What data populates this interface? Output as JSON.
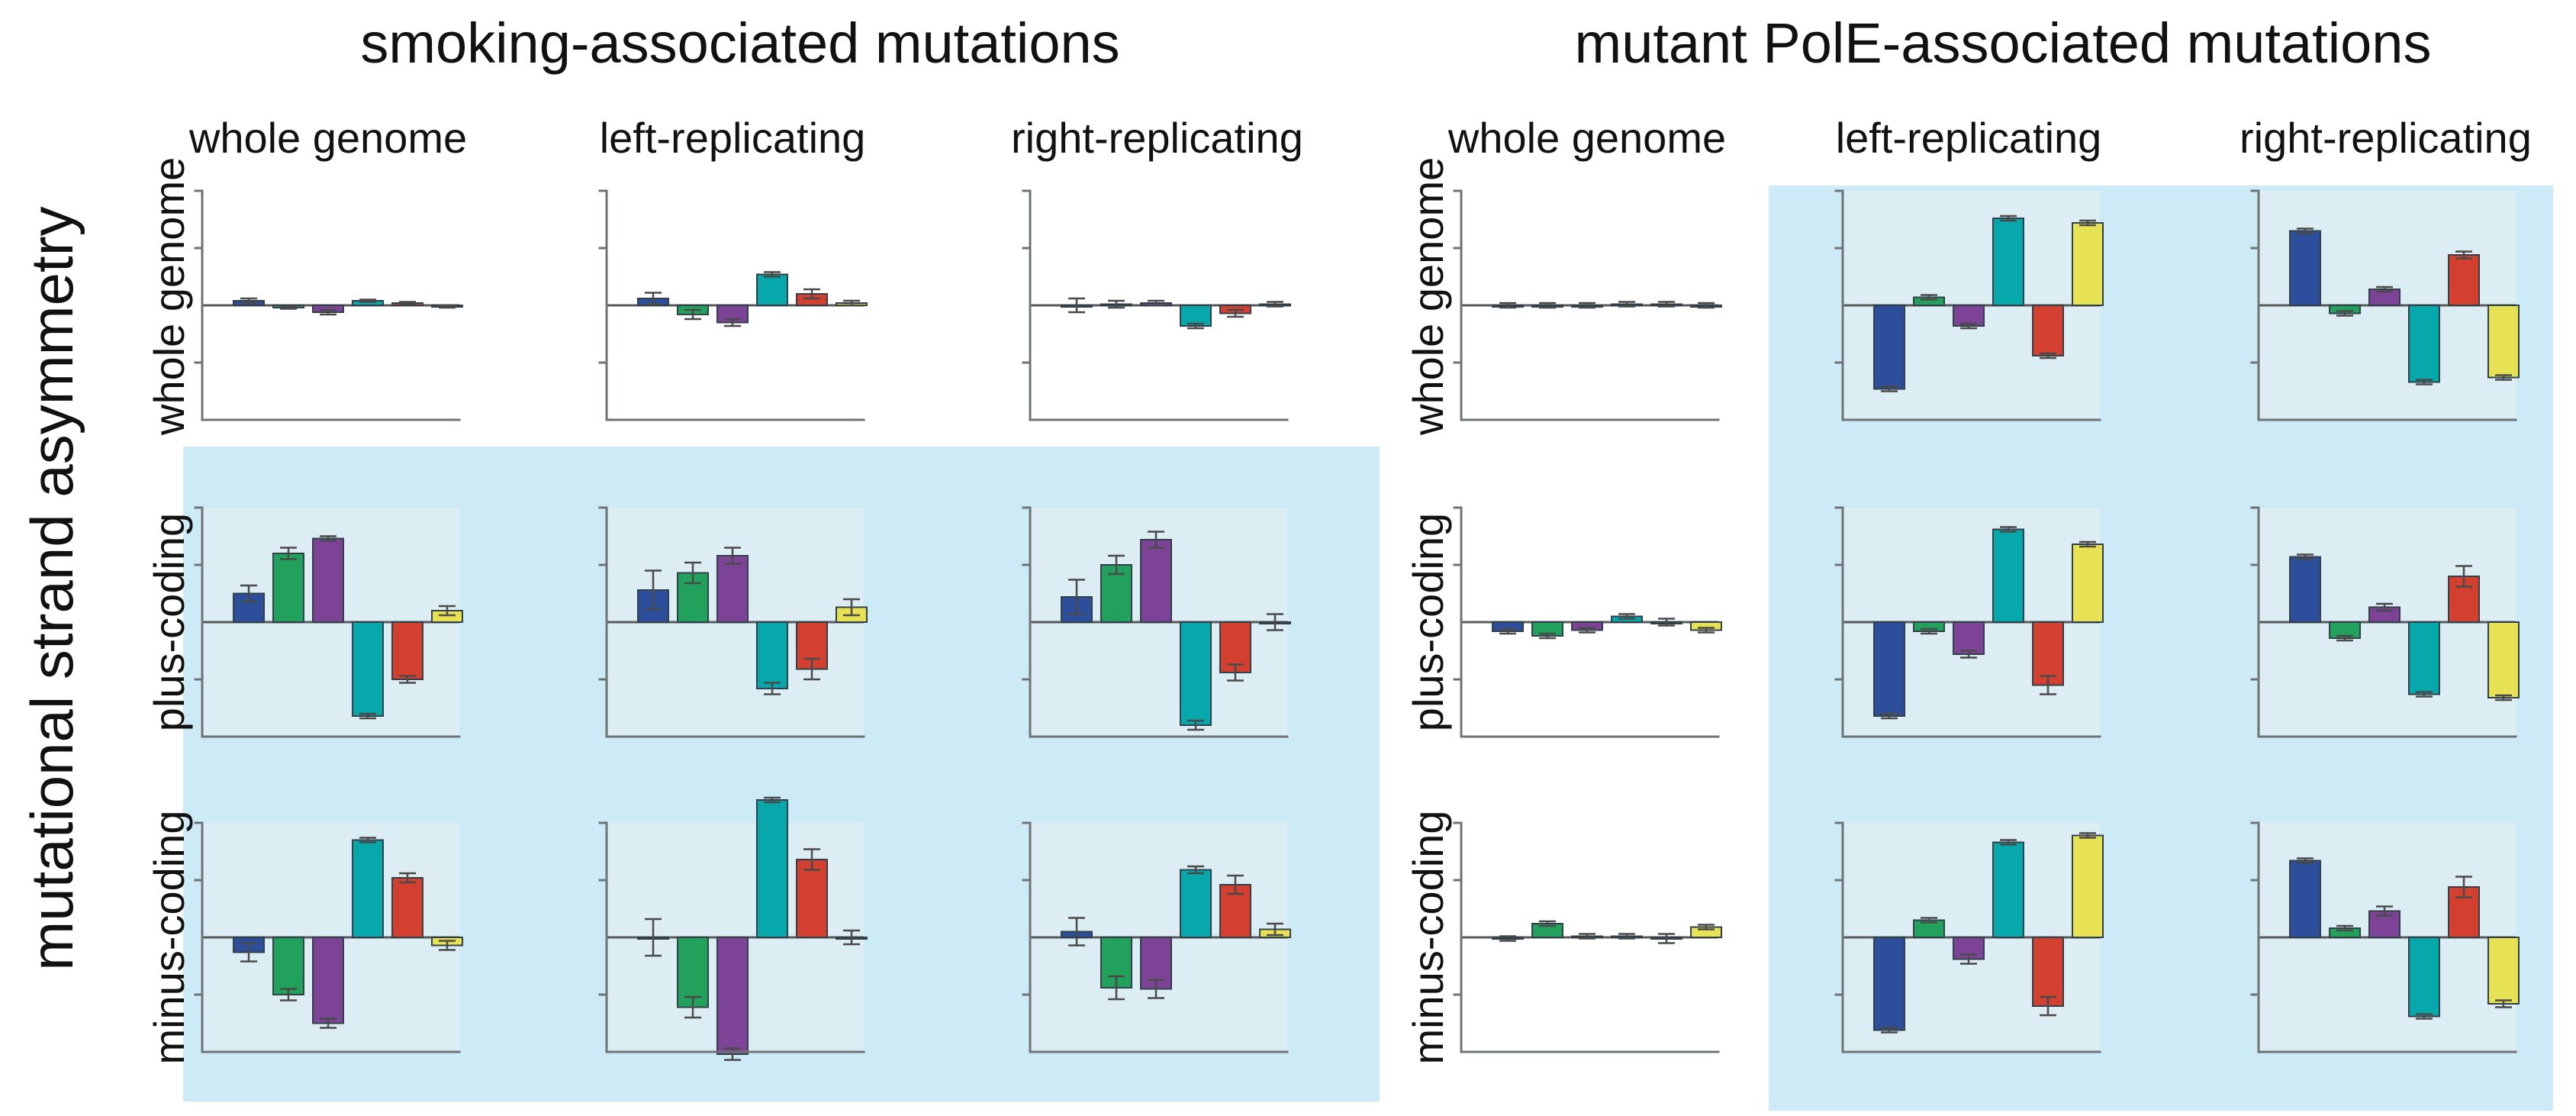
{
  "figure": {
    "y_axis_label": "mutational strand asymmetry",
    "panels": [
      {
        "title": "smoking-associated mutations",
        "columns": [
          "whole genome",
          "left-replicating",
          "right-replicating"
        ],
        "rows": [
          "whole genome",
          "plus-coding",
          "minus-coding"
        ],
        "highlight": {
          "mode": "rows",
          "from_index": 1
        }
      },
      {
        "title": "mutant PolE-associated mutations",
        "columns": [
          "whole genome",
          "left-replicating",
          "right-replicating"
        ],
        "rows": [
          "whole genome",
          "plus-coding",
          "minus-coding"
        ],
        "highlight": {
          "mode": "columns",
          "from_index": 1
        }
      }
    ]
  },
  "bar_series": [
    "blue",
    "green",
    "purple",
    "teal",
    "red",
    "yellow"
  ],
  "colors": {
    "blue": "#2d4f9b",
    "green": "#21a15c",
    "purple": "#7c4397",
    "teal": "#07a8ac",
    "red": "#d4402f",
    "yellow": "#e6e254",
    "highlight_bg": "#cdebf7",
    "plot_bg_highlight": "#dcedf3",
    "axis": "#6e7475",
    "zero_line": "#5a5a5a",
    "error_bar": "#4a4a4a",
    "bar_outline": "#32404a",
    "text": "#111111"
  },
  "chart_data": [
    {
      "type": "bar",
      "panel": "smoking-associated mutations",
      "row": "whole genome",
      "column": "whole genome",
      "categories": [
        "blue",
        "green",
        "purple",
        "teal",
        "red",
        "yellow"
      ],
      "values": [
        0.04,
        -0.02,
        -0.06,
        0.04,
        0.02,
        -0.01
      ],
      "errors": [
        0.02,
        0.01,
        0.02,
        0.01,
        0.01,
        0.01
      ],
      "ylim": [
        -1,
        1
      ],
      "grid": false,
      "legend": "none"
    },
    {
      "type": "bar",
      "panel": "smoking-associated mutations",
      "row": "whole genome",
      "column": "left-replicating",
      "categories": [
        "blue",
        "green",
        "purple",
        "teal",
        "red",
        "yellow"
      ],
      "values": [
        0.06,
        -0.08,
        -0.15,
        0.27,
        0.1,
        0.02
      ],
      "errors": [
        0.05,
        0.04,
        0.03,
        0.02,
        0.04,
        0.02
      ],
      "ylim": [
        -1,
        1
      ],
      "grid": false,
      "legend": "none"
    },
    {
      "type": "bar",
      "panel": "smoking-associated mutations",
      "row": "whole genome",
      "column": "right-replicating",
      "categories": [
        "blue",
        "green",
        "purple",
        "teal",
        "red",
        "yellow"
      ],
      "values": [
        0.0,
        0.01,
        0.02,
        -0.18,
        -0.07,
        0.01
      ],
      "errors": [
        0.06,
        0.03,
        0.02,
        0.02,
        0.03,
        0.02
      ],
      "ylim": [
        -1,
        1
      ],
      "grid": false,
      "legend": "none"
    },
    {
      "type": "bar",
      "panel": "smoking-associated mutations",
      "row": "plus-coding",
      "column": "whole genome",
      "categories": [
        "blue",
        "green",
        "purple",
        "teal",
        "red",
        "yellow"
      ],
      "values": [
        0.25,
        0.6,
        0.73,
        -0.82,
        -0.5,
        0.1
      ],
      "errors": [
        0.07,
        0.05,
        0.02,
        0.02,
        0.03,
        0.04
      ],
      "ylim": [
        -1,
        1
      ],
      "grid": false,
      "legend": "none"
    },
    {
      "type": "bar",
      "panel": "smoking-associated mutations",
      "row": "plus-coding",
      "column": "left-replicating",
      "categories": [
        "blue",
        "green",
        "purple",
        "teal",
        "red",
        "yellow"
      ],
      "values": [
        0.28,
        0.43,
        0.58,
        -0.58,
        -0.41,
        0.13
      ],
      "errors": [
        0.17,
        0.09,
        0.07,
        0.05,
        0.09,
        0.07
      ],
      "ylim": [
        -1,
        1
      ],
      "grid": false,
      "legend": "none"
    },
    {
      "type": "bar",
      "panel": "smoking-associated mutations",
      "row": "plus-coding",
      "column": "right-replicating",
      "categories": [
        "blue",
        "green",
        "purple",
        "teal",
        "red",
        "yellow"
      ],
      "values": [
        0.22,
        0.5,
        0.72,
        -0.9,
        -0.44,
        0.0
      ],
      "errors": [
        0.15,
        0.08,
        0.07,
        0.04,
        0.07,
        0.07
      ],
      "ylim": [
        -1,
        1
      ],
      "grid": false,
      "legend": "none"
    },
    {
      "type": "bar",
      "panel": "smoking-associated mutations",
      "row": "minus-coding",
      "column": "whole genome",
      "categories": [
        "blue",
        "green",
        "purple",
        "teal",
        "red",
        "yellow"
      ],
      "values": [
        -0.13,
        -0.5,
        -0.75,
        0.85,
        0.52,
        -0.07
      ],
      "errors": [
        0.08,
        0.05,
        0.04,
        0.02,
        0.04,
        0.04
      ],
      "ylim": [
        -1,
        1
      ],
      "grid": false,
      "legend": "none"
    },
    {
      "type": "bar",
      "panel": "smoking-associated mutations",
      "row": "minus-coding",
      "column": "left-replicating",
      "categories": [
        "blue",
        "green",
        "purple",
        "teal",
        "red",
        "yellow"
      ],
      "values": [
        0.0,
        -0.61,
        -1.02,
        1.2,
        0.68,
        0.0
      ],
      "errors": [
        0.16,
        0.09,
        0.05,
        0.02,
        0.09,
        0.06
      ],
      "ylim": [
        -1,
        1
      ],
      "grid": false,
      "legend": "none"
    },
    {
      "type": "bar",
      "panel": "smoking-associated mutations",
      "row": "minus-coding",
      "column": "right-replicating",
      "categories": [
        "blue",
        "green",
        "purple",
        "teal",
        "red",
        "yellow"
      ],
      "values": [
        0.05,
        -0.44,
        -0.45,
        0.59,
        0.46,
        0.07
      ],
      "errors": [
        0.12,
        0.1,
        0.08,
        0.03,
        0.08,
        0.05
      ],
      "ylim": [
        -1,
        1
      ],
      "grid": false,
      "legend": "none"
    },
    {
      "type": "bar",
      "panel": "mutant PolE-associated mutations",
      "row": "whole genome",
      "column": "whole genome",
      "categories": [
        "blue",
        "green",
        "purple",
        "teal",
        "red",
        "yellow"
      ],
      "values": [
        0.0,
        0.0,
        0.0,
        0.01,
        0.01,
        0.0
      ],
      "errors": [
        0.02,
        0.02,
        0.02,
        0.02,
        0.02,
        0.02
      ],
      "ylim": [
        -1,
        1
      ],
      "grid": false,
      "legend": "none"
    },
    {
      "type": "bar",
      "panel": "mutant PolE-associated mutations",
      "row": "whole genome",
      "column": "left-replicating",
      "categories": [
        "blue",
        "green",
        "purple",
        "teal",
        "red",
        "yellow"
      ],
      "values": [
        -0.73,
        0.07,
        -0.18,
        0.76,
        -0.44,
        0.72
      ],
      "errors": [
        0.02,
        0.02,
        0.02,
        0.02,
        0.02,
        0.02
      ],
      "ylim": [
        -1,
        1
      ],
      "grid": false,
      "legend": "none"
    },
    {
      "type": "bar",
      "panel": "mutant PolE-associated mutations",
      "row": "whole genome",
      "column": "right-replicating",
      "categories": [
        "blue",
        "green",
        "purple",
        "teal",
        "red",
        "yellow"
      ],
      "values": [
        0.65,
        -0.07,
        0.14,
        -0.67,
        0.44,
        -0.63
      ],
      "errors": [
        0.02,
        0.02,
        0.02,
        0.02,
        0.03,
        0.02
      ],
      "ylim": [
        -1,
        1
      ],
      "grid": false,
      "legend": "none"
    },
    {
      "type": "bar",
      "panel": "mutant PolE-associated mutations",
      "row": "plus-coding",
      "column": "whole genome",
      "categories": [
        "blue",
        "green",
        "purple",
        "teal",
        "red",
        "yellow"
      ],
      "values": [
        -0.08,
        -0.12,
        -0.07,
        0.05,
        0.0,
        -0.07
      ],
      "errors": [
        0.02,
        0.02,
        0.02,
        0.02,
        0.03,
        0.02
      ],
      "ylim": [
        -1,
        1
      ],
      "grid": false,
      "legend": "none"
    },
    {
      "type": "bar",
      "panel": "mutant PolE-associated mutations",
      "row": "plus-coding",
      "column": "left-replicating",
      "categories": [
        "blue",
        "green",
        "purple",
        "teal",
        "red",
        "yellow"
      ],
      "values": [
        -0.82,
        -0.08,
        -0.28,
        0.81,
        -0.55,
        0.68
      ],
      "errors": [
        0.02,
        0.02,
        0.03,
        0.02,
        0.08,
        0.02
      ],
      "ylim": [
        -1,
        1
      ],
      "grid": false,
      "legend": "none"
    },
    {
      "type": "bar",
      "panel": "mutant PolE-associated mutations",
      "row": "plus-coding",
      "column": "right-replicating",
      "categories": [
        "blue",
        "green",
        "purple",
        "teal",
        "red",
        "yellow"
      ],
      "values": [
        0.57,
        -0.14,
        0.13,
        -0.63,
        0.4,
        -0.66
      ],
      "errors": [
        0.02,
        0.02,
        0.03,
        0.02,
        0.09,
        0.02
      ],
      "ylim": [
        -1,
        1
      ],
      "grid": false,
      "legend": "none"
    },
    {
      "type": "bar",
      "panel": "mutant PolE-associated mutations",
      "row": "minus-coding",
      "column": "whole genome",
      "categories": [
        "blue",
        "green",
        "purple",
        "teal",
        "red",
        "yellow"
      ],
      "values": [
        -0.01,
        0.12,
        0.01,
        0.01,
        -0.01,
        0.09
      ],
      "errors": [
        0.02,
        0.02,
        0.02,
        0.02,
        0.04,
        0.02
      ],
      "ylim": [
        -1,
        1
      ],
      "grid": false,
      "legend": "none"
    },
    {
      "type": "bar",
      "panel": "mutant PolE-associated mutations",
      "row": "minus-coding",
      "column": "left-replicating",
      "categories": [
        "blue",
        "green",
        "purple",
        "teal",
        "red",
        "yellow"
      ],
      "values": [
        -0.81,
        0.15,
        -0.19,
        0.83,
        -0.6,
        0.89
      ],
      "errors": [
        0.02,
        0.02,
        0.04,
        0.02,
        0.08,
        0.02
      ],
      "ylim": [
        -1,
        1
      ],
      "grid": false,
      "legend": "none"
    },
    {
      "type": "bar",
      "panel": "mutant PolE-associated mutations",
      "row": "minus-coding",
      "column": "right-replicating",
      "categories": [
        "blue",
        "green",
        "purple",
        "teal",
        "red",
        "yellow"
      ],
      "values": [
        0.67,
        0.08,
        0.23,
        -0.69,
        0.44,
        -0.58
      ],
      "errors": [
        0.02,
        0.02,
        0.04,
        0.02,
        0.09,
        0.03
      ],
      "ylim": [
        -1,
        1
      ],
      "grid": false,
      "legend": "none"
    }
  ]
}
